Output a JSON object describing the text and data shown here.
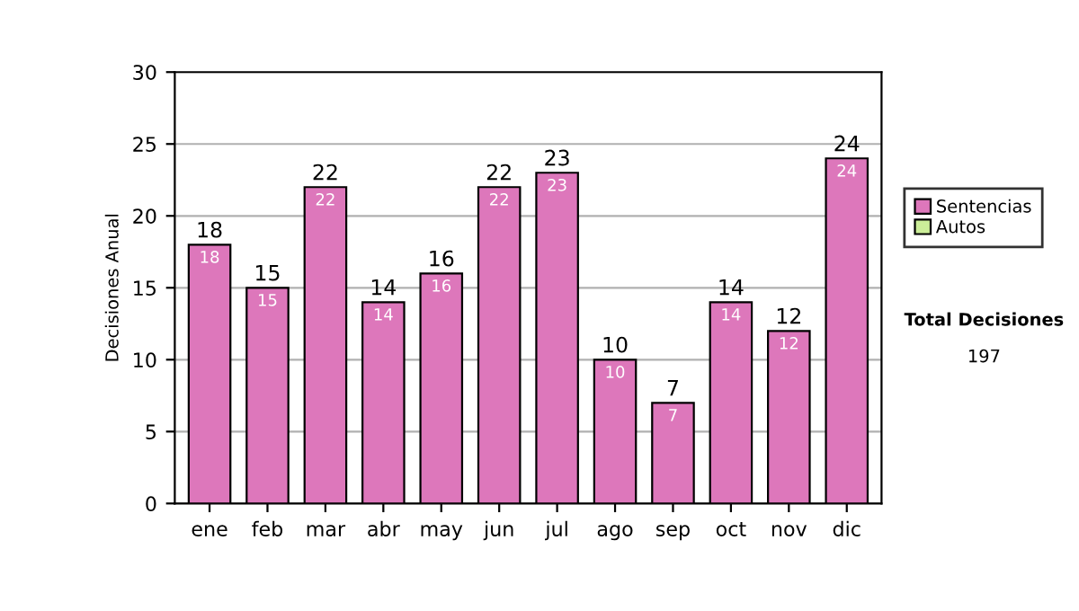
{
  "chart_data": {
    "type": "bar",
    "stacked": true,
    "ylabel": "Decisiones Anual",
    "categories": [
      "ene",
      "feb",
      "mar",
      "abr",
      "may",
      "jun",
      "jul",
      "ago",
      "sep",
      "oct",
      "nov",
      "dic"
    ],
    "series": [
      {
        "name": "Sentencias",
        "color": "#dd77bb",
        "values": [
          18,
          15,
          22,
          14,
          16,
          22,
          23,
          10,
          7,
          14,
          12,
          24
        ],
        "value_labels": [
          "18",
          "15",
          "22",
          "14",
          "16",
          "22",
          "23",
          "10",
          "7",
          "14",
          "12",
          "24"
        ]
      },
      {
        "name": "Autos",
        "color": "#ccee99",
        "values": [
          0,
          0,
          0,
          0,
          0,
          0,
          0,
          0,
          0,
          0,
          0,
          0
        ]
      }
    ],
    "totals": [
      "18",
      "15",
      "22",
      "14",
      "16",
      "22",
      "23",
      "10",
      "7",
      "14",
      "12",
      "24"
    ],
    "ylim": [
      0,
      30
    ],
    "yticks": [
      0,
      5,
      10,
      15,
      20,
      25,
      30
    ],
    "grid": "y",
    "legend": "right",
    "annotations": [
      "Total Decisiones",
      "197"
    ]
  }
}
